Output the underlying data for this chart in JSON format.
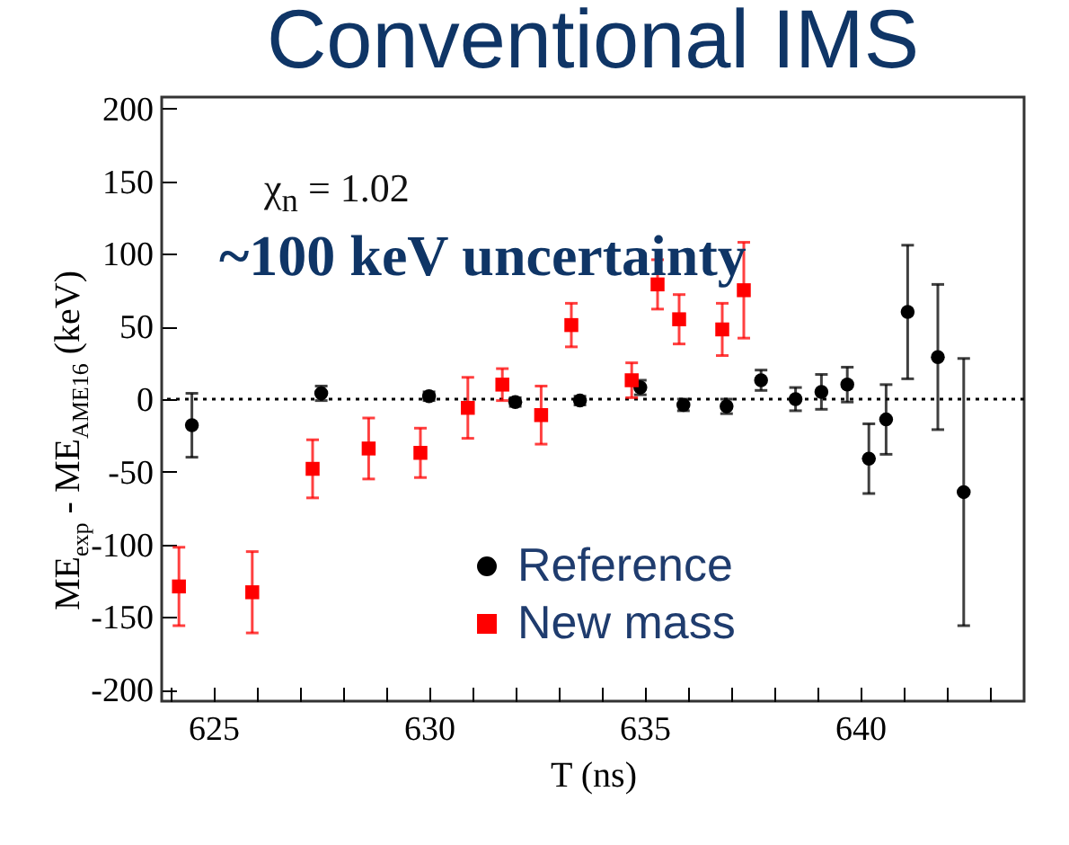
{
  "chart_data": {
    "type": "scatter",
    "title": "Conventional IMS",
    "xlabel": "T (ns)",
    "ylabel": "ME$_{exp}$ - ME$_{AME16}$ (keV)",
    "annotations": [
      "χ$_{n}$ = 1.02",
      "~100 keV uncertainty"
    ],
    "xlim": [
      623.8,
      643.8
    ],
    "ylim": [
      -208,
      208
    ],
    "xticks": [
      {
        "value": 624,
        "label": null
      },
      625,
      {
        "value": 626,
        "label": null
      },
      {
        "value": 627,
        "label": null
      },
      {
        "value": 628,
        "label": null
      },
      {
        "value": 629,
        "label": null
      },
      630,
      {
        "value": 631,
        "label": null
      },
      {
        "value": 632,
        "label": null
      },
      {
        "value": 633,
        "label": null
      },
      {
        "value": 634,
        "label": null
      },
      635,
      {
        "value": 636,
        "label": null
      },
      {
        "value": 637,
        "label": null
      },
      {
        "value": 638,
        "label": null
      },
      {
        "value": 639,
        "label": null
      },
      640,
      {
        "value": 641,
        "label": null
      },
      {
        "value": 642,
        "label": null
      },
      {
        "value": 643,
        "label": null
      }
    ],
    "yticks": [
      -200,
      -150,
      -100,
      -50,
      0,
      50,
      100,
      150,
      200
    ],
    "grid": false,
    "legend": "bottom",
    "ref_lines": [
      {
        "axis": "y",
        "value": 0,
        "line_style": "dotted",
        "color": "#000000"
      }
    ],
    "series": [
      {
        "name": "Reference",
        "color": "#000000",
        "marker": "circle",
        "x": [
          624.5,
          627.5,
          630.0,
          632.0,
          633.5,
          634.9,
          635.9,
          636.9,
          637.7,
          638.5,
          639.1,
          639.7,
          640.2,
          640.6,
          641.1,
          641.8,
          642.4
        ],
        "values": [
          -18,
          4,
          2,
          -2,
          -1,
          8,
          -4,
          -5,
          13,
          0,
          5,
          10,
          -41,
          -14,
          60,
          29,
          -64
        ],
        "errors": [
          22,
          5,
          3,
          3,
          3,
          5,
          4,
          5,
          7,
          8,
          12,
          12,
          24,
          24,
          46,
          50,
          92
        ]
      },
      {
        "name": "New mass",
        "color": "#ff0000",
        "marker": "square",
        "x": [
          624.2,
          625.9,
          627.3,
          628.6,
          629.8,
          630.9,
          631.7,
          632.6,
          633.3,
          634.7,
          635.3,
          635.8,
          636.8,
          637.3
        ],
        "values": [
          -129,
          -133,
          -48,
          -34,
          -37,
          -6,
          10,
          -11,
          51,
          13,
          79,
          55,
          48,
          75
        ],
        "errors": [
          27,
          28,
          20,
          21,
          17,
          21,
          11,
          20,
          15,
          12,
          17,
          17,
          18,
          33
        ]
      }
    ]
  }
}
